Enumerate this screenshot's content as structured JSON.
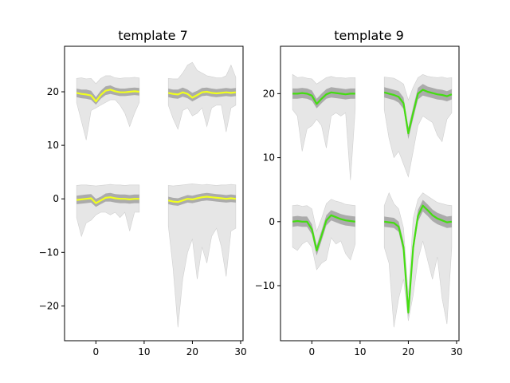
{
  "chart_data": [
    {
      "type": "line",
      "title": "template 7",
      "xlabel": "",
      "ylabel": "",
      "xlim": [
        -6.5,
        30.5
      ],
      "ylim": [
        -26.5,
        28.5
      ],
      "xticks": [
        0,
        10,
        20,
        30
      ],
      "yticks": [
        -20,
        -10,
        0,
        10,
        20
      ],
      "xtick_labels": [
        "0",
        "10",
        "20",
        "30"
      ],
      "ytick_labels": [
        "−20",
        "−10",
        "0",
        "10",
        "20"
      ],
      "grid": false,
      "mean_color": "#f0ff1e",
      "band_color": "#a0a0a0",
      "range_color": "#e3e3e3",
      "channels": [
        {
          "offset": 20,
          "segments": [
            {
              "x": [
                -4,
                -3,
                -2,
                -1,
                0,
                1,
                2,
                3,
                4,
                5,
                6,
                7,
                8,
                9
              ],
              "mean": [
                19.8,
                19.6,
                19.5,
                19.3,
                18.2,
                19.4,
                20.2,
                20.4,
                20.1,
                19.9,
                19.9,
                20.0,
                20.1,
                20.0
              ],
              "std_low": [
                19.0,
                18.8,
                18.7,
                18.5,
                17.6,
                18.7,
                19.4,
                19.6,
                19.4,
                19.2,
                19.2,
                19.3,
                19.4,
                19.3
              ],
              "std_high": [
                20.6,
                20.4,
                20.4,
                20.2,
                19.0,
                20.2,
                21.0,
                21.2,
                20.8,
                20.6,
                20.6,
                20.7,
                20.8,
                20.7
              ],
              "min": [
                18.0,
                14.5,
                11.0,
                16.5,
                17.0,
                17.5,
                18.0,
                18.5,
                18.5,
                17.5,
                16.0,
                13.5,
                16.0,
                18.0
              ],
              "max": [
                22.5,
                22.6,
                22.4,
                22.5,
                21.5,
                22.5,
                23.0,
                23.0,
                22.6,
                22.5,
                22.6,
                22.6,
                22.7,
                22.6
              ]
            },
            {
              "x": [
                15,
                16,
                17,
                18,
                19,
                20,
                21,
                22,
                23,
                24,
                25,
                26,
                27,
                28,
                29
              ],
              "mean": [
                19.8,
                19.6,
                19.5,
                19.9,
                19.6,
                18.9,
                19.4,
                19.9,
                20.0,
                19.8,
                19.7,
                19.8,
                19.9,
                19.8,
                19.9
              ],
              "std_low": [
                19.0,
                18.8,
                18.7,
                19.1,
                18.8,
                18.2,
                18.7,
                19.2,
                19.3,
                19.1,
                19.0,
                19.1,
                19.2,
                19.1,
                19.2
              ],
              "std_high": [
                20.6,
                20.4,
                20.4,
                20.8,
                20.4,
                19.8,
                20.2,
                20.7,
                20.8,
                20.6,
                20.5,
                20.6,
                20.7,
                20.6,
                20.7
              ],
              "min": [
                17.5,
                15.0,
                13.0,
                16.5,
                17.0,
                15.5,
                16.0,
                17.0,
                13.5,
                17.0,
                17.5,
                17.5,
                12.5,
                17.0,
                17.5
              ],
              "max": [
                22.5,
                22.4,
                22.4,
                23.5,
                25.0,
                25.5,
                24.0,
                23.5,
                23.0,
                22.8,
                22.6,
                22.6,
                23.0,
                25.0,
                22.7
              ]
            }
          ]
        },
        {
          "offset": 0,
          "segments": [
            {
              "x": [
                -4,
                -3,
                -2,
                -1,
                0,
                1,
                2,
                3,
                4,
                5,
                6,
                7,
                8,
                9
              ],
              "mean": [
                -0.2,
                -0.1,
                0.0,
                0.1,
                -0.8,
                -0.3,
                0.2,
                0.3,
                0.1,
                0.0,
                0.0,
                -0.1,
                0.0,
                0.0
              ],
              "std_low": [
                -1.0,
                -0.9,
                -0.8,
                -0.7,
                -1.5,
                -1.0,
                -0.5,
                -0.5,
                -0.7,
                -0.8,
                -0.8,
                -0.9,
                -0.8,
                -0.8
              ],
              "std_high": [
                0.6,
                0.7,
                0.8,
                0.9,
                0.0,
                0.4,
                1.0,
                1.1,
                0.9,
                0.8,
                0.8,
                0.7,
                0.8,
                0.8
              ],
              "min": [
                -3.5,
                -7.0,
                -4.5,
                -4.0,
                -3.0,
                -2.5,
                -2.5,
                -3.0,
                -2.5,
                -3.5,
                -2.5,
                -6.0,
                -2.5,
                -2.5
              ],
              "max": [
                2.5,
                2.6,
                2.6,
                2.5,
                2.4,
                2.5,
                2.6,
                2.7,
                2.6,
                2.6,
                2.5,
                2.6,
                2.6,
                2.6
              ]
            },
            {
              "x": [
                15,
                16,
                17,
                18,
                19,
                20,
                21,
                22,
                23,
                24,
                25,
                26,
                27,
                28,
                29
              ],
              "mean": [
                -0.3,
                -0.5,
                -0.6,
                -0.3,
                0.0,
                -0.1,
                0.1,
                0.3,
                0.4,
                0.3,
                0.2,
                0.1,
                0.0,
                0.1,
                0.0
              ],
              "std_low": [
                -1.0,
                -1.2,
                -1.3,
                -1.0,
                -0.7,
                -0.8,
                -0.6,
                -0.4,
                -0.3,
                -0.4,
                -0.5,
                -0.6,
                -0.7,
                -0.6,
                -0.7
              ],
              "std_high": [
                0.4,
                0.2,
                0.1,
                0.4,
                0.7,
                0.6,
                0.8,
                1.0,
                1.1,
                1.0,
                0.9,
                0.8,
                0.7,
                0.8,
                0.7
              ],
              "min": [
                -5.0,
                -13.0,
                -24.0,
                -15.0,
                -10.0,
                -7.5,
                -15.0,
                -9.0,
                -12.0,
                -7.0,
                -5.5,
                -9.0,
                -14.5,
                -6.0,
                -5.5
              ],
              "max": [
                2.5,
                2.4,
                2.5,
                2.6,
                2.7,
                2.8,
                2.7,
                2.6,
                2.7,
                2.6,
                2.5,
                2.6,
                2.6,
                2.7,
                2.6
              ]
            }
          ]
        }
      ]
    },
    {
      "type": "line",
      "title": "template 9",
      "xlabel": "",
      "ylabel": "",
      "xlim": [
        -6.5,
        30.5
      ],
      "ylim": [
        -18.6,
        27.4
      ],
      "xticks": [
        0,
        10,
        20,
        30
      ],
      "yticks": [
        -10,
        0,
        10,
        20
      ],
      "xtick_labels": [
        "0",
        "10",
        "20",
        "30"
      ],
      "ytick_labels": [
        "−10",
        "0",
        "10",
        "20"
      ],
      "grid": false,
      "mean_color": "#44dd11",
      "band_color": "#a0a0a0",
      "range_color": "#e3e3e3",
      "channels": [
        {
          "offset": 20,
          "segments": [
            {
              "x": [
                -4,
                -3,
                -2,
                -1,
                0,
                1,
                2,
                3,
                4,
                5,
                6,
                7,
                8,
                9
              ],
              "mean": [
                20.0,
                20.0,
                20.1,
                20.0,
                19.7,
                18.4,
                19.2,
                19.9,
                20.2,
                20.1,
                20.0,
                19.9,
                20.0,
                20.0
              ],
              "std_low": [
                19.2,
                19.2,
                19.3,
                19.2,
                18.9,
                17.7,
                18.5,
                19.2,
                19.4,
                19.3,
                19.2,
                19.1,
                19.2,
                19.2
              ],
              "std_high": [
                20.8,
                20.8,
                20.9,
                20.8,
                20.5,
                19.2,
                20.0,
                20.7,
                21.0,
                20.9,
                20.8,
                20.7,
                20.8,
                20.8
              ],
              "min": [
                17.5,
                16.5,
                11.0,
                14.5,
                15.0,
                16.0,
                15.0,
                11.5,
                16.5,
                17.0,
                16.5,
                17.0,
                6.5,
                17.5
              ],
              "max": [
                23.0,
                22.5,
                22.6,
                22.4,
                22.3,
                21.5,
                22.0,
                22.5,
                22.7,
                22.5,
                22.5,
                22.4,
                22.5,
                22.5
              ]
            },
            {
              "x": [
                15,
                16,
                17,
                18,
                19,
                20,
                21,
                22,
                23,
                24,
                25,
                26,
                27,
                28,
                29
              ],
              "mean": [
                20.2,
                20.0,
                19.8,
                19.5,
                18.5,
                13.8,
                17.0,
                20.0,
                20.6,
                20.3,
                20.1,
                19.9,
                19.8,
                19.6,
                19.9
              ],
              "std_low": [
                19.4,
                19.2,
                19.0,
                18.6,
                17.6,
                12.9,
                16.1,
                19.1,
                19.7,
                19.5,
                19.3,
                19.1,
                19.0,
                18.8,
                19.1
              ],
              "std_high": [
                21.0,
                20.8,
                20.6,
                20.4,
                19.4,
                14.7,
                17.9,
                20.9,
                21.5,
                21.1,
                20.9,
                20.7,
                20.6,
                20.4,
                20.7
              ],
              "min": [
                17.5,
                13.0,
                10.0,
                11.0,
                9.0,
                7.0,
                11.0,
                15.0,
                16.5,
                16.0,
                15.5,
                13.5,
                12.5,
                16.0,
                17.0
              ],
              "max": [
                22.6,
                22.5,
                22.4,
                22.0,
                21.5,
                19.0,
                21.0,
                22.5,
                23.0,
                22.7,
                22.6,
                22.5,
                22.6,
                22.4,
                22.5
              ]
            }
          ]
        },
        {
          "offset": 0,
          "segments": [
            {
              "x": [
                -4,
                -3,
                -2,
                -1,
                0,
                1,
                2,
                3,
                4,
                5,
                6,
                7,
                8,
                9
              ],
              "mean": [
                0.0,
                0.1,
                0.0,
                0.0,
                -1.2,
                -4.5,
                -2.2,
                0.2,
                1.0,
                0.7,
                0.4,
                0.2,
                0.1,
                0.0
              ],
              "std_low": [
                -0.8,
                -0.7,
                -0.8,
                -0.8,
                -2.0,
                -5.3,
                -3.0,
                -0.6,
                0.2,
                -0.1,
                -0.4,
                -0.6,
                -0.7,
                -0.8
              ],
              "std_high": [
                0.8,
                0.9,
                0.8,
                0.8,
                -0.4,
                -3.7,
                -1.4,
                1.0,
                1.8,
                1.5,
                1.2,
                1.0,
                0.9,
                0.8
              ],
              "min": [
                -4.0,
                -4.5,
                -3.5,
                -3.0,
                -4.0,
                -7.5,
                -6.5,
                -6.0,
                -2.5,
                -3.5,
                -3.0,
                -5.0,
                -6.0,
                -3.5
              ],
              "max": [
                2.5,
                2.6,
                2.4,
                2.5,
                2.0,
                -1.5,
                0.5,
                2.8,
                3.5,
                3.2,
                3.0,
                2.7,
                2.6,
                2.5
              ]
            },
            {
              "x": [
                15,
                16,
                17,
                18,
                19,
                20,
                21,
                22,
                23,
                24,
                25,
                26,
                27,
                28,
                29
              ],
              "mean": [
                0.0,
                -0.1,
                -0.2,
                -0.8,
                -4.0,
                -14.2,
                -4.0,
                0.9,
                2.5,
                1.8,
                1.0,
                0.5,
                0.2,
                -0.1,
                0.0
              ],
              "std_low": [
                -0.8,
                -0.9,
                -1.0,
                -1.6,
                -4.9,
                -15.0,
                -4.9,
                0.0,
                1.6,
                0.9,
                0.1,
                -0.4,
                -0.7,
                -1.0,
                -0.9
              ],
              "std_high": [
                0.8,
                0.7,
                0.6,
                0.0,
                -3.1,
                -13.4,
                -3.1,
                1.8,
                3.4,
                2.7,
                1.9,
                1.4,
                1.1,
                0.8,
                0.9
              ],
              "min": [
                -4.0,
                -6.5,
                -16.5,
                -12.0,
                -9.0,
                -15.5,
                -11.5,
                -6.0,
                -3.0,
                -6.0,
                -9.0,
                -5.5,
                -12.0,
                -16.0,
                -4.0
              ],
              "max": [
                2.5,
                4.5,
                2.8,
                2.0,
                -1.0,
                -11.5,
                0.5,
                3.5,
                4.5,
                4.0,
                3.5,
                3.0,
                2.8,
                2.6,
                2.5
              ]
            }
          ]
        }
      ]
    }
  ]
}
